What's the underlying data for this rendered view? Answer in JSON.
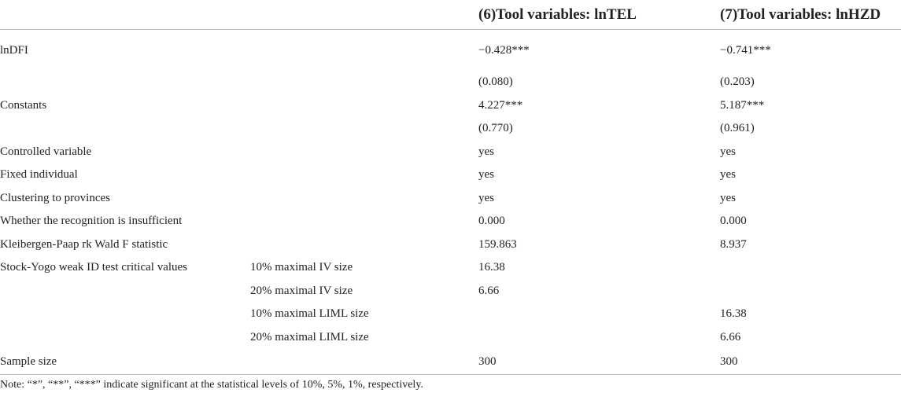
{
  "table": {
    "headers": [
      "",
      "",
      "(6)Tool variables: lnTEL",
      "(7)Tool variables: lnHZD"
    ],
    "rows": [
      [
        "lnDFI",
        "",
        "−0.428***",
        "−0.741***"
      ],
      [
        "",
        "",
        "(0.080)",
        "(0.203)"
      ],
      [
        "Constants",
        "",
        "4.227***",
        "5.187***"
      ],
      [
        "",
        "",
        "(0.770)",
        "(0.961)"
      ],
      [
        "Controlled variable",
        "",
        "yes",
        "yes"
      ],
      [
        "Fixed individual",
        "",
        "yes",
        "yes"
      ],
      [
        "Clustering to provinces",
        "",
        "yes",
        "yes"
      ],
      [
        "Whether the recognition is insufficient",
        "",
        "0.000",
        "0.000"
      ],
      [
        "Kleibergen-Paap rk Wald F statistic",
        "",
        "159.863",
        "8.937"
      ],
      [
        "Stock-Yogo weak ID test critical values",
        "10% maximal IV size",
        "16.38",
        ""
      ],
      [
        "",
        "20% maximal IV size",
        "6.66",
        ""
      ],
      [
        "",
        "10% maximal LIML size",
        "",
        "16.38"
      ],
      [
        "",
        "20% maximal LIML size",
        "",
        "6.66"
      ],
      [
        "Sample size",
        "",
        "300",
        "300"
      ]
    ]
  },
  "note": "Note: “*”, “**”, “***” indicate significant at the statistical levels of 10%, 5%, 1%, respectively."
}
